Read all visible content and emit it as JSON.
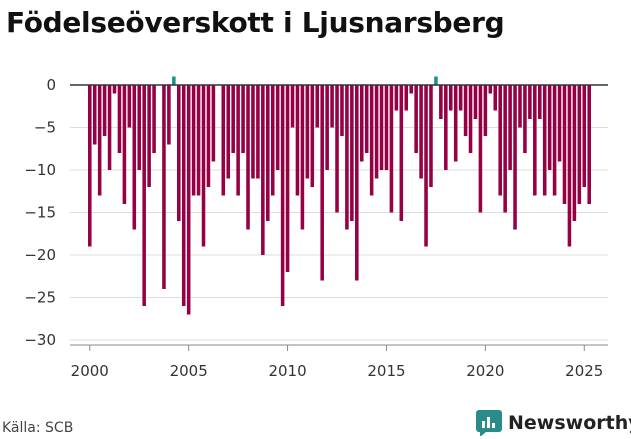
{
  "title": "Födelseöverskott i Ljusnarsberg",
  "source": "Källa: SCB",
  "brand": {
    "name": "Newsworthy",
    "icon": "chart-logo-icon"
  },
  "colors": {
    "negative": "#960044",
    "positive": "#1a938b",
    "text": "#333333",
    "brand": "#2a8c88"
  },
  "chart_data": {
    "type": "bar",
    "title": "Födelseöverskott i Ljusnarsberg",
    "xlabel": "",
    "ylabel": "",
    "ylim": [
      -30,
      0
    ],
    "xlim": [
      1999,
      2026.2
    ],
    "y_ticks": [
      0,
      -5,
      -10,
      -15,
      -20,
      -25,
      -30
    ],
    "y_tick_labels": [
      "0",
      "−5",
      "−10",
      "−15",
      "−20",
      "−25",
      "−30"
    ],
    "x_ticks": [
      2000,
      2005,
      2010,
      2015,
      2020,
      2025
    ],
    "x_tick_labels": [
      "2000",
      "2005",
      "2010",
      "2015",
      "2020",
      "2025"
    ],
    "grid": true,
    "bar_step_years": 0.25,
    "start_year": 2000,
    "values": [
      -19,
      -7,
      -13,
      -6,
      -10,
      -1,
      -8,
      -14,
      -5,
      -17,
      -10,
      -26,
      -12,
      -8,
      0,
      -24,
      -7,
      1,
      -16,
      -26,
      -27,
      -13,
      -13,
      -19,
      -12,
      -9,
      0,
      -13,
      -11,
      -8,
      -13,
      -8,
      -17,
      -11,
      -11,
      -20,
      -16,
      -13,
      -10,
      -26,
      -22,
      -5,
      -13,
      -17,
      -11,
      -12,
      -5,
      -23,
      -10,
      -5,
      -15,
      -6,
      -17,
      -16,
      -23,
      -9,
      -8,
      -13,
      -11,
      -10,
      -10,
      -15,
      -3,
      -16,
      -3,
      -1,
      -8,
      -11,
      -19,
      -12,
      1,
      -4,
      -10,
      -3,
      -9,
      -3,
      -6,
      -8,
      -4,
      -15,
      -6,
      -1,
      -3,
      -13,
      -15,
      -10,
      -17,
      -5,
      -8,
      -4,
      -13,
      -4,
      -13,
      -10,
      -13,
      -9,
      -14,
      -19,
      -16,
      -14,
      -12,
      -14
    ]
  }
}
